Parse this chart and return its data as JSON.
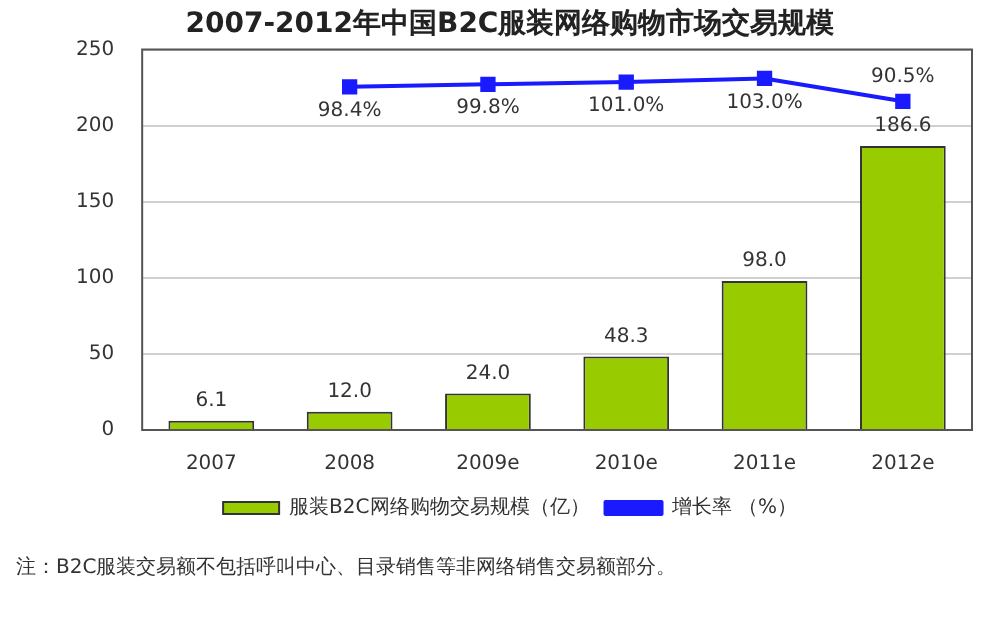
{
  "chart_data": {
    "type": "bar",
    "title": "2007-2012年中国B2C服装网络购物市场交易规模",
    "categories": [
      "2007",
      "2008",
      "2009e",
      "2010e",
      "2011e",
      "2012e"
    ],
    "series": [
      {
        "name": "服装B2C网络购物交易规模（亿）",
        "color": "#99cc00",
        "values": [
          6.1,
          12.0,
          24.0,
          48.3,
          98.0,
          186.6
        ],
        "value_labels": [
          "6.1",
          "12.0",
          "24.0",
          "48.3",
          "98.0",
          "186.6"
        ]
      },
      {
        "name": "增长率 （%）",
        "type": "line",
        "axis": "y2",
        "color": "#1a1aff",
        "values": [
          null,
          98.4,
          99.8,
          101.0,
          103.0,
          90.5
        ],
        "value_labels": [
          null,
          "98.4%",
          "99.8%",
          "101.0%",
          "103.0%",
          "90.5%"
        ]
      }
    ],
    "ylim": [
      0,
      250
    ],
    "yticks": [
      0,
      50,
      100,
      150,
      200,
      250
    ],
    "y2lim": [
      -89.5,
      118.8
    ],
    "grid": "y",
    "legend": "bottom",
    "marker": "square",
    "annotations": [
      "注：B2C服装交易额不包括呼叫中心、目录销售等非网络销售交易额部分。"
    ]
  }
}
